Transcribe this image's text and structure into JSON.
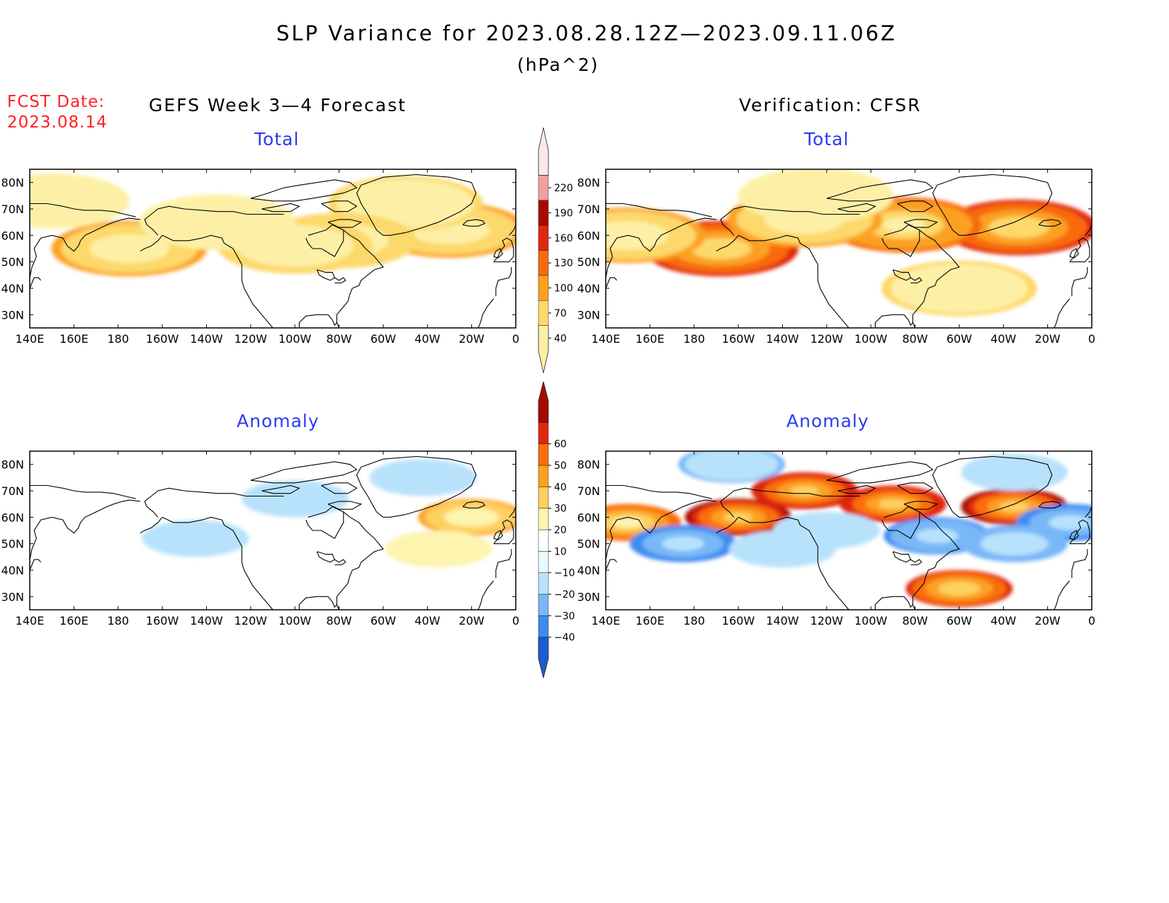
{
  "title": "SLP Variance for 2023.08.28.12Z—2023.09.11.06Z",
  "units": "(hPa^2)",
  "fcst_date_label": "FCST Date:",
  "fcst_date_value": "2023.08.14",
  "left_column_title": "GEFS Week 3—4 Forecast",
  "right_column_title": "Verification: CFSR",
  "row_titles": {
    "total": "Total",
    "anomaly": "Anomaly"
  },
  "map": {
    "lon_labels": [
      "140E",
      "160E",
      "180",
      "160W",
      "140W",
      "120W",
      "100W",
      "80W",
      "60W",
      "40W",
      "20W",
      "0"
    ],
    "lat_labels": [
      "80N",
      "70N",
      "60N",
      "50N",
      "40N",
      "30N"
    ],
    "lon_range": [
      140,
      360
    ],
    "lat_range": [
      25,
      85
    ]
  },
  "colorbars": {
    "total": {
      "levels": [
        40,
        70,
        100,
        130,
        160,
        190,
        220
      ],
      "labels": [
        "40",
        "70",
        "100",
        "130",
        "160",
        "190",
        "220"
      ],
      "colors": [
        "#fdf0a6",
        "#fdd86a",
        "#fca020",
        "#f86a10",
        "#e02810",
        "#a80800",
        "#f0a0a0",
        "#fde8e8"
      ]
    },
    "anomaly": {
      "levels": [
        -40,
        -30,
        -20,
        -10,
        10,
        20,
        30,
        40,
        50,
        60
      ],
      "labels": [
        "-40",
        "-30",
        "-20",
        "-10",
        "10",
        "20",
        "30",
        "40",
        "50",
        "60"
      ],
      "colors": [
        "#1c5cd0",
        "#3c8cf0",
        "#78b8f8",
        "#b8e2fc",
        "#e8faff",
        "#ffffff",
        "#fdf4b0",
        "#fdd060",
        "#fca024",
        "#fa6e10",
        "#e0280c",
        "#a80800"
      ]
    }
  },
  "fields": {
    "fcst_total": [
      {
        "lon": 185,
        "lat": 55,
        "value": 100
      },
      {
        "lon": 330,
        "lat": 62,
        "value": 100
      },
      {
        "lon": 310,
        "lat": 72,
        "value": 75
      },
      {
        "lon": 280,
        "lat": 58,
        "value": 90
      },
      {
        "lon": 260,
        "lat": 56,
        "value": 80
      },
      {
        "lon": 150,
        "lat": 73,
        "value": 55
      },
      {
        "lon": 225,
        "lat": 65,
        "value": 50
      }
    ],
    "cfsr_total": [
      {
        "lon": 192,
        "lat": 55,
        "value": 160
      },
      {
        "lon": 327,
        "lat": 63,
        "value": 160
      },
      {
        "lon": 275,
        "lat": 64,
        "value": 140
      },
      {
        "lon": 230,
        "lat": 66,
        "value": 110
      },
      {
        "lon": 150,
        "lat": 60,
        "value": 100
      },
      {
        "lon": 300,
        "lat": 40,
        "value": 75
      },
      {
        "lon": 235,
        "lat": 75,
        "value": 60
      }
    ],
    "fcst_anomaly": [
      {
        "lon": 340,
        "lat": 60,
        "value": 30
      },
      {
        "lon": 325,
        "lat": 48,
        "value": 12
      },
      {
        "lon": 215,
        "lat": 52,
        "value": -12
      },
      {
        "lon": 260,
        "lat": 67,
        "value": -12
      },
      {
        "lon": 318,
        "lat": 75,
        "value": -12
      }
    ],
    "cfsr_anomaly": [
      {
        "lon": 200,
        "lat": 60,
        "value": 60
      },
      {
        "lon": 230,
        "lat": 70,
        "value": 58
      },
      {
        "lon": 270,
        "lat": 65,
        "value": 58
      },
      {
        "lon": 325,
        "lat": 64,
        "value": 60
      },
      {
        "lon": 150,
        "lat": 58,
        "value": 45
      },
      {
        "lon": 300,
        "lat": 33,
        "value": 50
      },
      {
        "lon": 175,
        "lat": 50,
        "value": -35
      },
      {
        "lon": 290,
        "lat": 53,
        "value": -32
      },
      {
        "lon": 350,
        "lat": 58,
        "value": -35
      },
      {
        "lon": 325,
        "lat": 50,
        "value": -25
      },
      {
        "lon": 197,
        "lat": 80,
        "value": -20
      },
      {
        "lon": 325,
        "lat": 77,
        "value": -18
      },
      {
        "lon": 220,
        "lat": 48,
        "value": -18
      },
      {
        "lon": 240,
        "lat": 55,
        "value": -12
      }
    ]
  }
}
